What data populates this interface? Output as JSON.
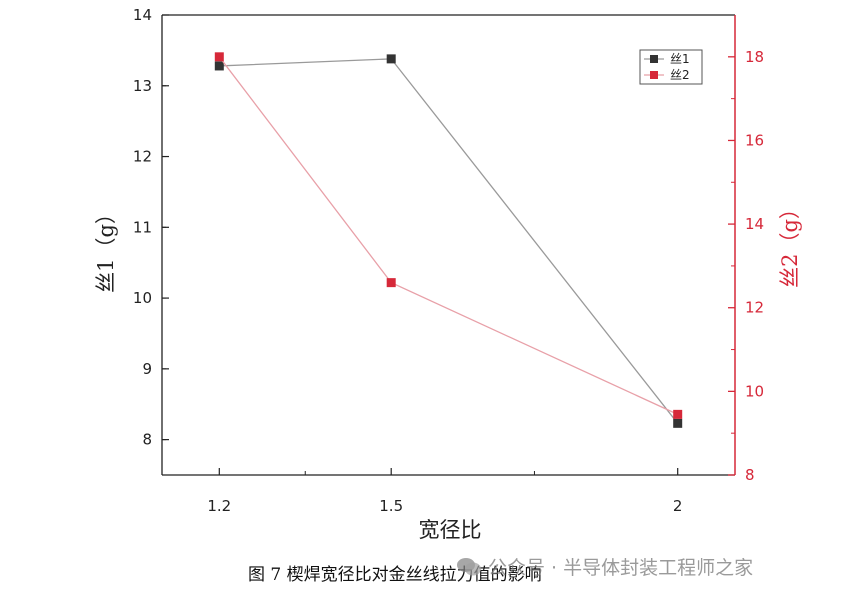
{
  "chart_data": {
    "type": "line",
    "categories": [
      "1.2",
      "1.5",
      "2"
    ],
    "x": [
      1.2,
      1.5,
      2
    ],
    "xlabel": "宽径比",
    "xlim": [
      1.1,
      2.1
    ],
    "y_left": {
      "label": "丝1（g）",
      "range": [
        7.5,
        14
      ],
      "ticks": [
        8,
        9,
        10,
        11,
        12,
        13,
        14
      ]
    },
    "y_right": {
      "label": "丝2（g）",
      "range": [
        8,
        19
      ],
      "ticks": [
        8,
        10,
        12,
        14,
        16,
        18
      ]
    },
    "legend_position": "top-right",
    "series": [
      {
        "name": "丝1",
        "axis": "left",
        "color": "#333333",
        "line_color": "#9a9a9a",
        "marker": "square",
        "values": [
          13.28,
          13.38,
          8.23
        ]
      },
      {
        "name": "丝2",
        "axis": "right",
        "color": "#d62839",
        "line_color": "#e8a0a8",
        "marker": "square",
        "values": [
          18.0,
          12.6,
          9.45
        ]
      }
    ],
    "right_axis_color": "#d62839",
    "grid": false
  },
  "caption": "图 7  楔焊宽径比对金丝线拉力值的影响",
  "watermark": "公众号 · 半导体封装工程师之家"
}
